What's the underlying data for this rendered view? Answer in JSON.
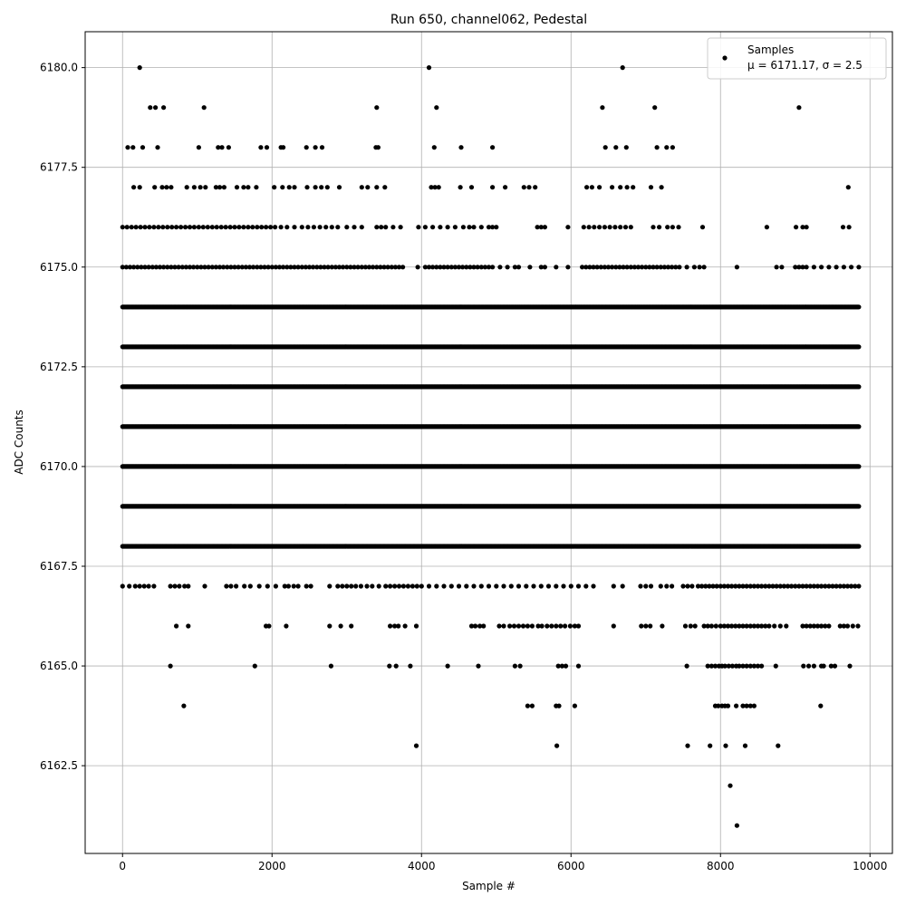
{
  "chart_data": {
    "type": "scatter",
    "title": "Run 650, channel062, Pedestal",
    "xlabel": "Sample #",
    "ylabel": "ADC Counts",
    "xlim": [
      -500,
      10300
    ],
    "ylim": [
      6160.3,
      6180.9
    ],
    "xticks": [
      0,
      2000,
      4000,
      6000,
      8000,
      10000
    ],
    "xtick_labels": [
      "0",
      "2000",
      "4000",
      "6000",
      "8000",
      "10000"
    ],
    "yticks": [
      6162.5,
      6165.0,
      6167.5,
      6170.0,
      6172.5,
      6175.0,
      6177.5,
      6180.0
    ],
    "ytick_labels": [
      "6162.5",
      "6165.0",
      "6167.5",
      "6170.0",
      "6172.5",
      "6175.0",
      "6177.5",
      "6180.0"
    ],
    "grid": true,
    "legend": {
      "placement": "top-right",
      "series_label": "Samples",
      "stats_label": "μ = 6171.17, σ = 2.5"
    },
    "marker_color": "#000000",
    "series": [
      {
        "name": "Samples",
        "levels": [
          {
            "y": 6180,
            "x": [
              230,
              4100,
              6690
            ]
          },
          {
            "y": 6179,
            "x": [
              370,
              440,
              550,
              1090,
              3400,
              4200,
              6420,
              7120,
              9050
            ]
          },
          {
            "y": 6178,
            "x": [
              70,
              140,
              270,
              470,
              1020,
              1280,
              1330,
              1420,
              1850,
              1930,
              2120,
              2150,
              2460,
              2580,
              2670,
              3390,
              3420,
              4170,
              4530,
              4950,
              6460,
              6600,
              6740,
              7150,
              7280,
              7360
            ]
          },
          {
            "y": 6177,
            "x": [
              150,
              230,
              430,
              530,
              590,
              650,
              860,
              960,
              1040,
              1110,
              1250,
              1300,
              1360,
              1530,
              1620,
              1680,
              1790,
              2030,
              2140,
              2230,
              2300,
              2470,
              2580,
              2660,
              2740,
              2900,
              3200,
              3280,
              3400,
              3510,
              4130,
              4180,
              4230,
              4520,
              4670,
              4950,
              5120,
              5370,
              5440,
              5520,
              6210,
              6280,
              6380,
              6550,
              6660,
              6750,
              6830,
              7070,
              7210,
              9710
            ]
          },
          {
            "y": 6176,
            "x": [
              0,
              60,
              120,
              180,
              240,
              300,
              360,
              420,
              480,
              540,
              600,
              660,
              720,
              780,
              840,
              900,
              960,
              1020,
              1080,
              1140,
              1200,
              1260,
              1320,
              1380,
              1440,
              1500,
              1560,
              1620,
              1680,
              1740,
              1800,
              1860,
              1920,
              1980,
              2040,
              2120,
              2200,
              2300,
              2400,
              2480,
              2560,
              2640,
              2720,
              2800,
              2880,
              3000,
              3100,
              3200,
              3400,
              3460,
              3520,
              3620,
              3720,
              3960,
              4050,
              4150,
              4250,
              4350,
              4450,
              4560,
              4640,
              4700,
              4800,
              4900,
              4950,
              5000,
              5550,
              5600,
              5650,
              5960,
              6170,
              6240,
              6310,
              6380,
              6450,
              6520,
              6590,
              6660,
              6730,
              6800,
              7100,
              7180,
              7290,
              7360,
              7440,
              7760,
              8620,
              9010,
              9100,
              9150,
              9640,
              9720
            ]
          },
          {
            "y": 6175,
            "x": [
              0,
              50,
              100,
              150,
              200,
              250,
              300,
              350,
              400,
              450,
              500,
              550,
              600,
              650,
              700,
              750,
              800,
              850,
              900,
              950,
              1000,
              1050,
              1100,
              1150,
              1200,
              1250,
              1300,
              1350,
              1400,
              1450,
              1500,
              1550,
              1600,
              1650,
              1700,
              1750,
              1800,
              1850,
              1900,
              1950,
              2000,
              2050,
              2100,
              2150,
              2200,
              2250,
              2300,
              2350,
              2400,
              2450,
              2500,
              2550,
              2600,
              2650,
              2700,
              2750,
              2800,
              2850,
              2900,
              2950,
              3000,
              3050,
              3100,
              3150,
              3200,
              3250,
              3300,
              3350,
              3400,
              3450,
              3500,
              3550,
              3600,
              3650,
              3700,
              3750,
              3950,
              4050,
              4100,
              4150,
              4200,
              4250,
              4300,
              4350,
              4400,
              4450,
              4500,
              4550,
              4600,
              4650,
              4700,
              4750,
              4800,
              4850,
              4900,
              4950,
              5050,
              5150,
              5250,
              5300,
              5450,
              5600,
              5650,
              5800,
              5960,
              6150,
              6200,
              6250,
              6300,
              6350,
              6400,
              6450,
              6500,
              6550,
              6600,
              6650,
              6700,
              6750,
              6800,
              6850,
              6900,
              6950,
              7000,
              7050,
              7100,
              7150,
              7200,
              7250,
              7300,
              7350,
              7400,
              7450,
              7550,
              7650,
              7720,
              7780,
              8220,
              8750,
              8820,
              9000,
              9050,
              9100,
              9150,
              9250,
              9350,
              9450,
              9550,
              9650,
              9750,
              9850
            ]
          },
          {
            "y": 6167,
            "x": [
              0,
              90,
              170,
              230,
              290,
              350,
              420,
              640,
              700,
              760,
              830,
              880,
              1100,
              1390,
              1450,
              1520,
              1630,
              1710,
              1830,
              1940,
              2050,
              2170,
              2220,
              2290,
              2350,
              2460,
              2520,
              2770,
              2880,
              2940,
              3000,
              3060,
              3120,
              3190,
              3270,
              3340,
              3430,
              3520,
              3580,
              3640,
              3700,
              3760,
              3820,
              3880,
              3940,
              4000,
              4100,
              4200,
              4300,
              4400,
              4500,
              4600,
              4700,
              4800,
              4900,
              5000,
              5100,
              5200,
              5300,
              5400,
              5500,
              5600,
              5700,
              5800,
              5900,
              6000,
              6100,
              6200,
              6300,
              6570,
              6690,
              6930,
              7000,
              7070,
              7200,
              7280,
              7350,
              7500,
              7560,
              7620,
              7700,
              7750,
              7800,
              7850,
              7900,
              7950,
              8000,
              8050,
              8100,
              8150,
              8200,
              8250,
              8300,
              8350,
              8400,
              8450,
              8500,
              8550,
              8600,
              8650,
              8700,
              8750,
              8800,
              8850,
              8900,
              8950,
              9000,
              9050,
              9100,
              9150,
              9200,
              9250,
              9300,
              9350,
              9400,
              9450,
              9500,
              9550,
              9600,
              9650,
              9700,
              9750,
              9800,
              9850
            ]
          },
          {
            "y": 6166,
            "x": [
              720,
              880,
              1920,
              1960,
              2190,
              2770,
              2920,
              3060,
              3580,
              3640,
              3690,
              3780,
              3930,
              4670,
              4720,
              4780,
              4830,
              5040,
              5100,
              5180,
              5240,
              5300,
              5360,
              5420,
              5480,
              5560,
              5610,
              5680,
              5740,
              5800,
              5860,
              5920,
              5990,
              6050,
              6100,
              6570,
              6940,
              7000,
              7060,
              7220,
              7530,
              7600,
              7660,
              7780,
              7830,
              7880,
              7940,
              8000,
              8050,
              8100,
              8150,
              8200,
              8250,
              8300,
              8350,
              8400,
              8450,
              8500,
              8550,
              8600,
              8650,
              8720,
              8800,
              8880,
              9100,
              9150,
              9200,
              9250,
              9300,
              9350,
              9400,
              9450,
              9600,
              9650,
              9700,
              9770,
              9840
            ]
          },
          {
            "y": 6165,
            "x": [
              640,
              1770,
              2790,
              3570,
              3660,
              3850,
              4350,
              4760,
              5250,
              5320,
              5830,
              5880,
              5930,
              6100,
              7550,
              7830,
              7880,
              7930,
              7980,
              8020,
              8060,
              8110,
              8160,
              8210,
              8250,
              8300,
              8350,
              8400,
              8450,
              8500,
              8550,
              8740,
              9110,
              9180,
              9250,
              9350,
              9380,
              9480,
              9530,
              9730
            ]
          },
          {
            "y": 6164,
            "x": [
              820,
              5420,
              5480,
              5800,
              5840,
              6050,
              7930,
              7970,
              8020,
              8060,
              8100,
              8210,
              8300,
              8350,
              8400,
              8450,
              9340
            ]
          },
          {
            "y": 6163,
            "x": [
              3930,
              5810,
              7560,
              7860,
              8070,
              8330,
              8770
            ]
          },
          {
            "y": 6162,
            "x": [
              8130
            ]
          },
          {
            "y": 6161,
            "x": [
              8220
            ]
          }
        ],
        "dense_levels": [
          6174,
          6173,
          6172,
          6171,
          6170,
          6169,
          6168
        ],
        "dense_x_range": [
          0,
          9850
        ],
        "dense_step": 10
      }
    ]
  }
}
